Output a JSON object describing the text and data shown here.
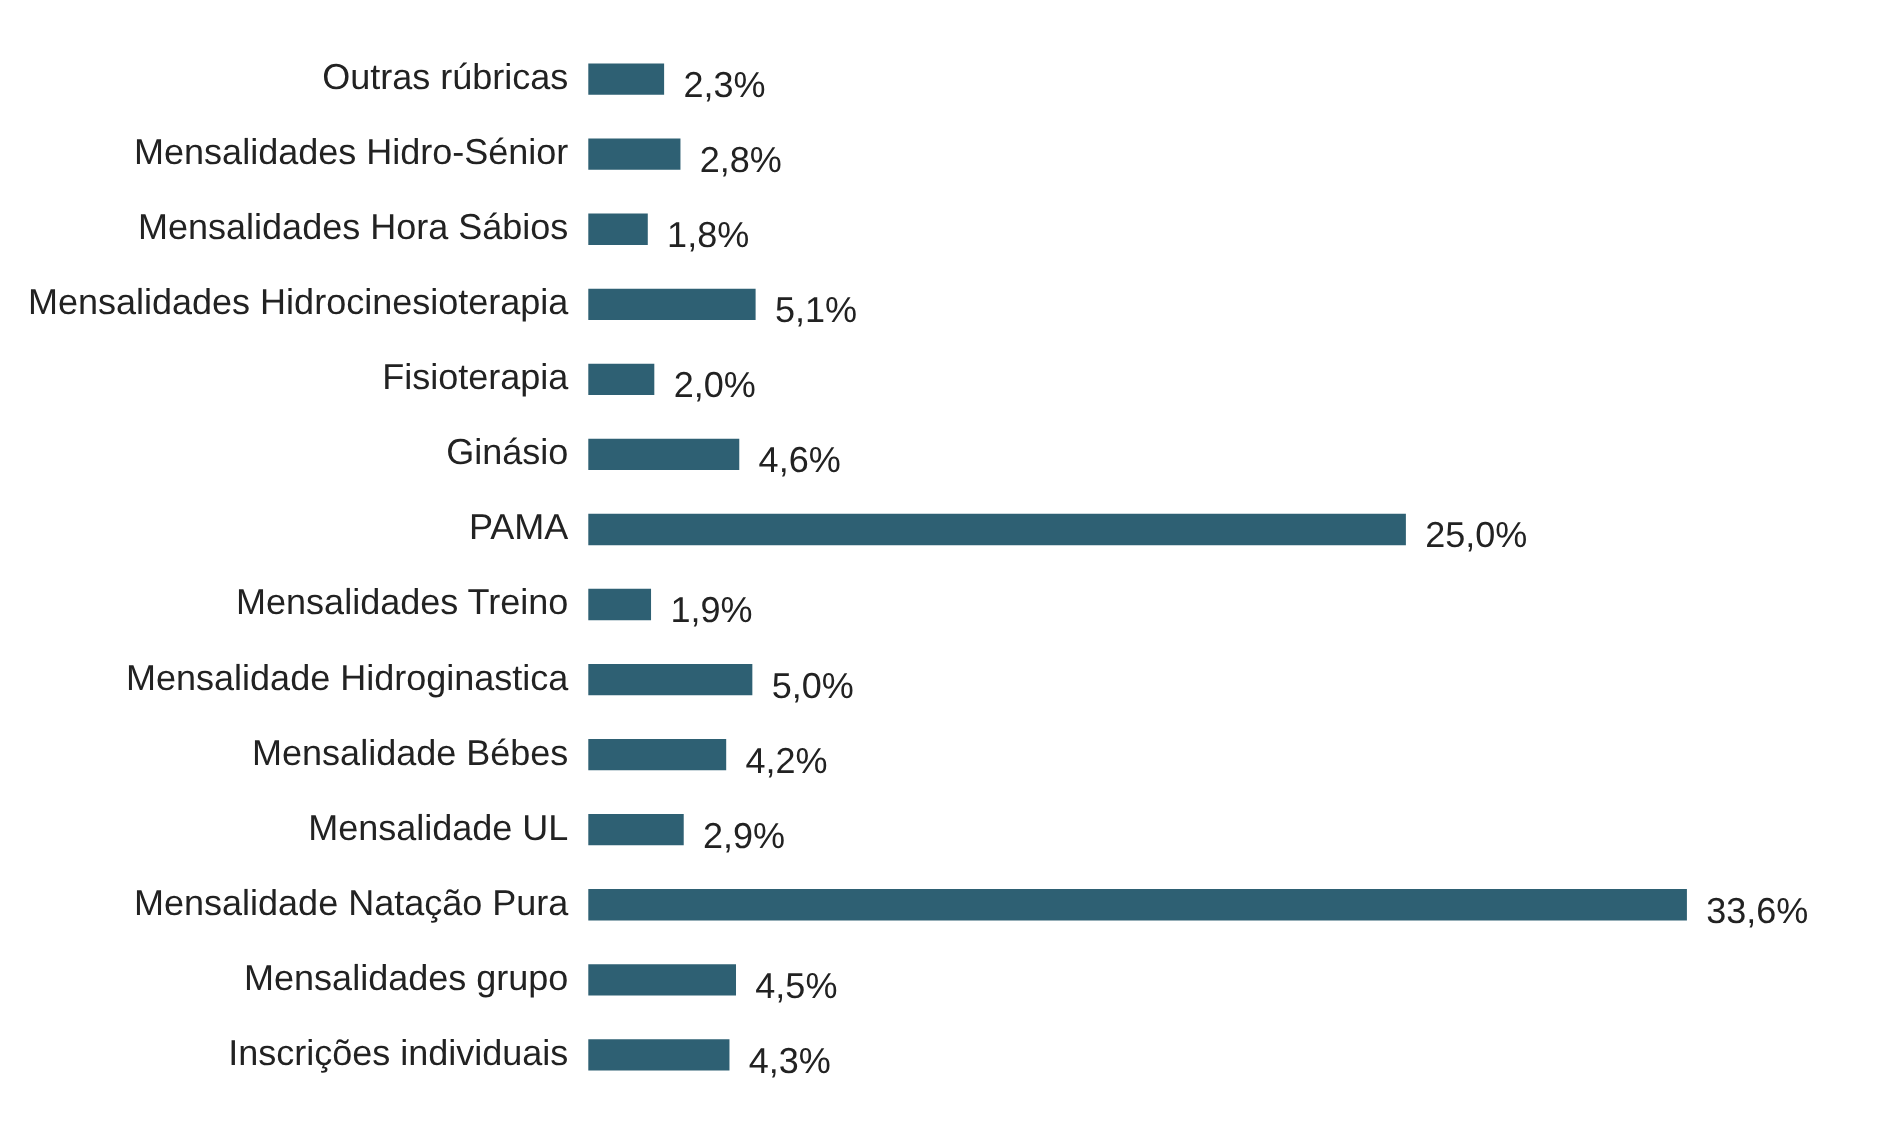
{
  "chart_data": {
    "type": "bar",
    "orientation": "horizontal",
    "tick_labels": "y",
    "grid": false,
    "legend": false,
    "categories": [
      "Outras rúbricas",
      "Mensalidades Hidro-Sénior",
      "Mensalidades Hora Sábios",
      "Mensalidades Hidrocinesioterapia",
      "Fisioterapia",
      "Ginásio",
      "PAMA",
      "Mensalidades Treino",
      "Mensalidade Hidroginastica",
      "Mensalidade Bébes",
      "Mensalidade UL",
      "Mensalidade Natação Pura",
      "Mensalidades grupo",
      "Inscrições individuais"
    ],
    "values": [
      2.3,
      2.8,
      1.8,
      5.1,
      2.0,
      4.6,
      25.0,
      1.9,
      5.0,
      4.2,
      2.9,
      33.6,
      4.5,
      4.3
    ],
    "value_labels": [
      "2,3%",
      "2,8%",
      "1,8%",
      "5,1%",
      "2,0%",
      "4,6%",
      "25,0%",
      "1,9%",
      "5,0%",
      "4,2%",
      "2,9%",
      "33,6%",
      "4,5%",
      "4,3%"
    ],
    "color": "#2e6073"
  }
}
